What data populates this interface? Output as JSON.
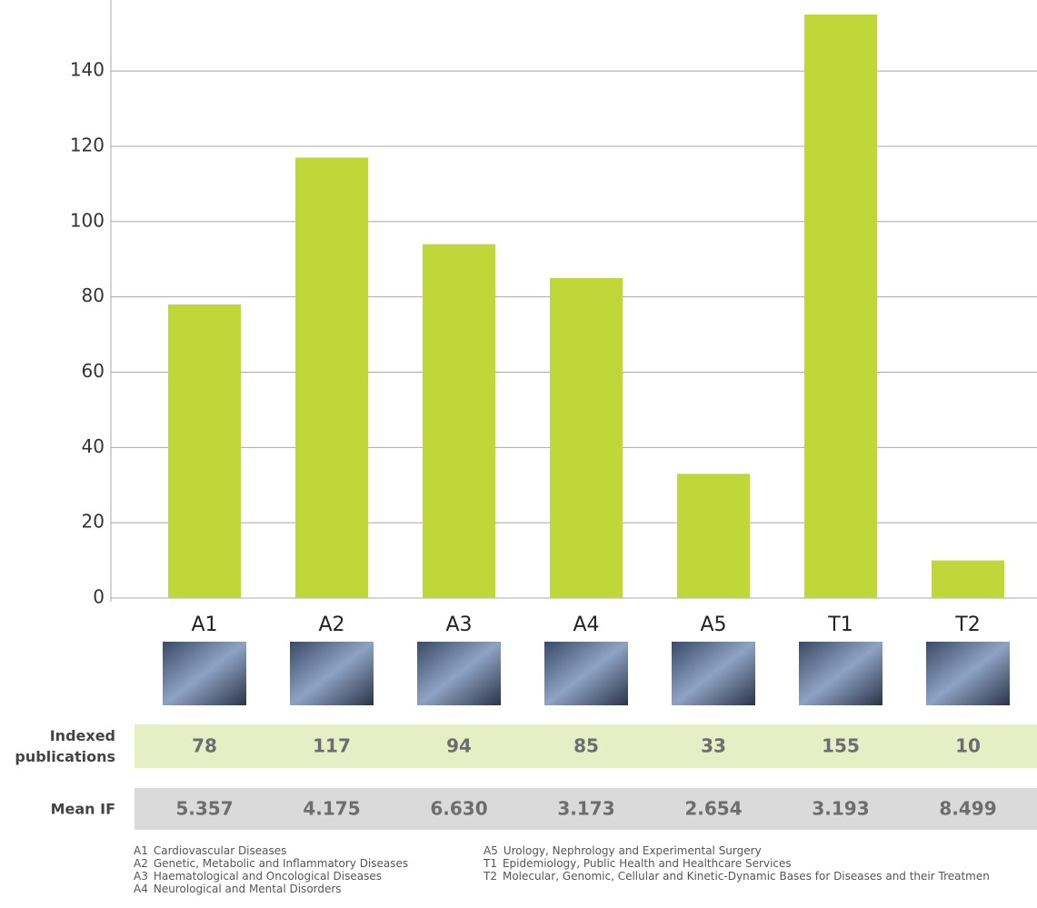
{
  "chart_data": {
    "type": "bar",
    "categories": [
      "A1",
      "A2",
      "A3",
      "A4",
      "A5",
      "T1",
      "T2"
    ],
    "values": [
      78,
      117,
      94,
      85,
      33,
      155,
      10
    ],
    "color": "#bfd738",
    "ylim": [
      0,
      155
    ],
    "yticks": [
      0,
      20,
      40,
      60,
      80,
      100,
      120,
      140
    ],
    "grid": true,
    "publications_label": "Indexed publications",
    "mean_if": {
      "label": "Mean IF",
      "values": [
        5.357,
        4.175,
        6.63,
        3.173,
        2.654,
        3.193,
        8.499
      ],
      "value_labels": [
        "5.357",
        "4.175",
        "6.630",
        "3.173",
        "2.654",
        "3.193",
        "8.499"
      ]
    },
    "legend": [
      {
        "code": "A1",
        "name": "Cardiovascular Diseases"
      },
      {
        "code": "A2",
        "name": "Genetic, Metabolic and Inflammatory Diseases"
      },
      {
        "code": "A3",
        "name": "Haematological and Oncological Diseases"
      },
      {
        "code": "A4",
        "name": "Neurological and Mental Disorders"
      },
      {
        "code": "A5",
        "name": "Urology, Nephrology and Experimental Surgery"
      },
      {
        "code": "T1",
        "name": "Epidemiology, Public Health and Healthcare Services"
      },
      {
        "code": "T2",
        "name": "Molecular, Genomic, Cellular and Kinetic-Dynamic Bases for Diseases and their Treatmen"
      }
    ]
  }
}
